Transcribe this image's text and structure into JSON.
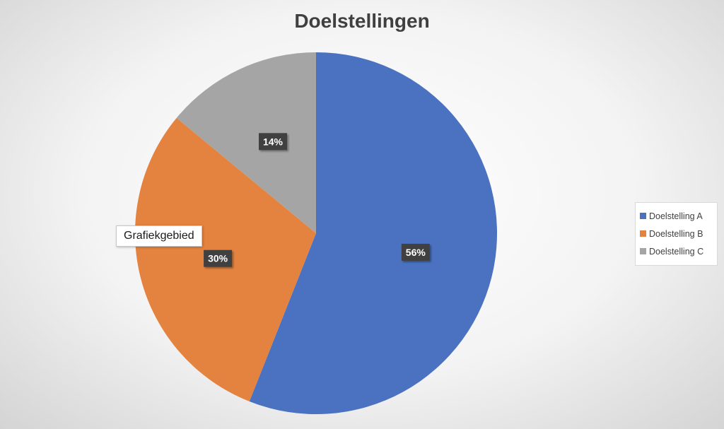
{
  "chart_data": {
    "type": "pie",
    "title": "Doelstellingen",
    "categories": [
      "Doelstelling A",
      "Doelstelling B",
      "Doelstelling C"
    ],
    "values": [
      56,
      30,
      14
    ],
    "data_labels": [
      "56%",
      "30%",
      "14%"
    ],
    "colors": [
      "#4a72c0",
      "#e4833f",
      "#a5a5a5"
    ],
    "legend_position": "right"
  },
  "tooltip": {
    "text": "Grafiekgebied"
  }
}
